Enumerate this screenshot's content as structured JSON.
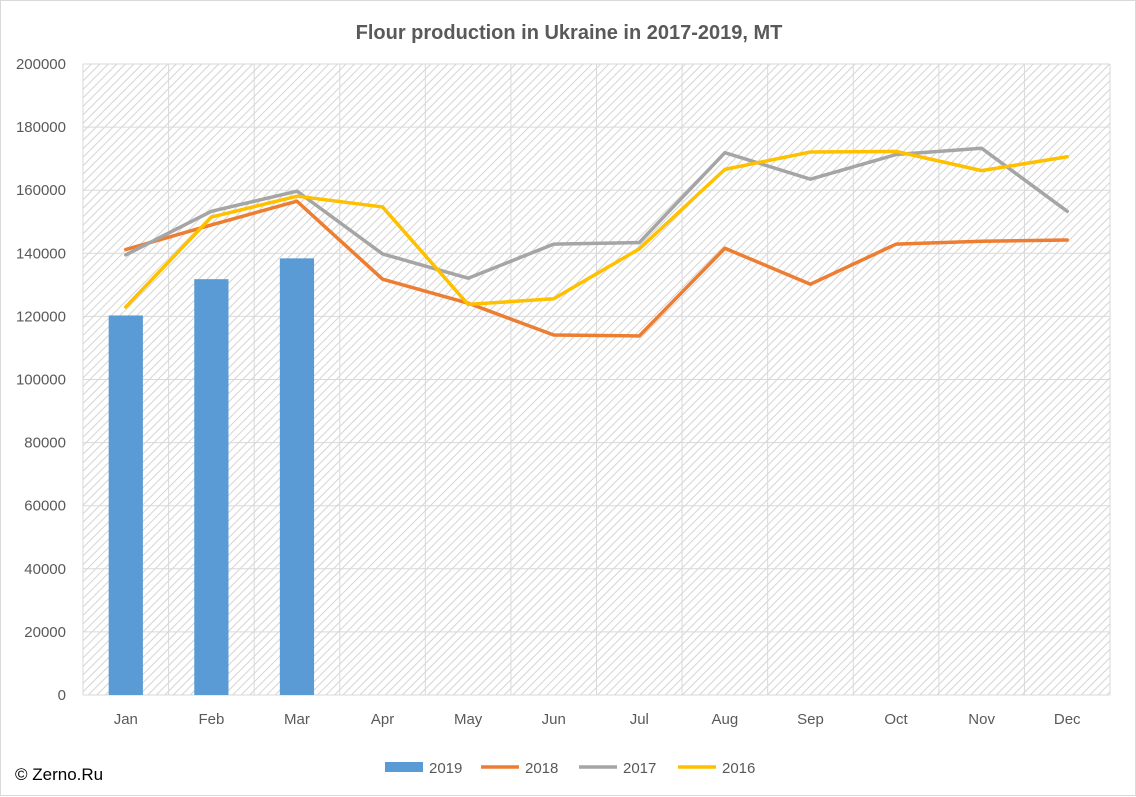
{
  "chart_data": {
    "type": "bar+line",
    "title": "Flour production in Ukraine in 2017-2019, MT",
    "xlabel": "",
    "ylabel": "",
    "ylim": [
      0,
      200000
    ],
    "yticks": [
      "0",
      "20000",
      "40000",
      "60000",
      "80000",
      "100000",
      "120000",
      "140000",
      "160000",
      "180000",
      "200000"
    ],
    "categories": [
      "Jan",
      "Feb",
      "Mar",
      "Apr",
      "May",
      "Jun",
      "Jul",
      "Aug",
      "Sep",
      "Oct",
      "Nov",
      "Dec"
    ],
    "grid": true,
    "legend_position": "bottom",
    "series": [
      {
        "name": "2019",
        "kind": "bar",
        "color": "#5b9bd5",
        "values": [
          120300,
          131800,
          138400,
          null,
          null,
          null,
          null,
          null,
          null,
          null,
          null,
          null
        ]
      },
      {
        "name": "2018",
        "kind": "line",
        "color": "#ed7d31",
        "values": [
          141200,
          149000,
          156500,
          131800,
          124200,
          114100,
          113800,
          141600,
          130200,
          142900,
          143800,
          144200
        ]
      },
      {
        "name": "2017",
        "kind": "line",
        "color": "#a5a5a5",
        "values": [
          139500,
          153300,
          159700,
          139800,
          132100,
          142900,
          143400,
          171900,
          163500,
          171300,
          173300,
          153300
        ]
      },
      {
        "name": "2016",
        "kind": "line",
        "color": "#ffc000",
        "values": [
          123000,
          151500,
          158100,
          154700,
          123800,
          125600,
          141400,
          166600,
          172100,
          172300,
          166200,
          170600
        ]
      }
    ]
  },
  "credit": "© Zerno.Ru"
}
